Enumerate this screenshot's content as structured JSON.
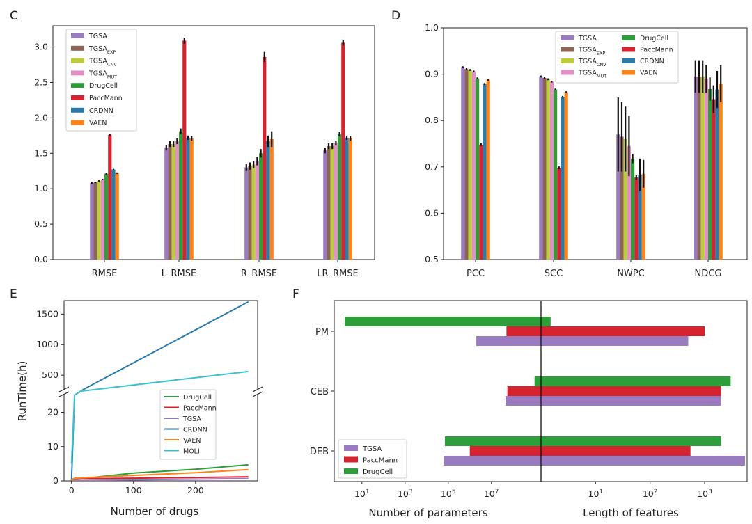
{
  "colors": {
    "TGSA": "#9a7bbf",
    "TGSA_EXP": "#8c6454",
    "TGSA_CNV": "#bccc3c",
    "TGSA_MUT": "#e58fc8",
    "DrugCell": "#2e9e3a",
    "PaccMann": "#d5242f",
    "CRDNN": "#2a7bab",
    "VAEN": "#ff8318",
    "MOLI": "#3cc1cf",
    "errbar": "#111111"
  },
  "model_legend": [
    {
      "key": "TGSA",
      "base": "TGSA",
      "sub": ""
    },
    {
      "key": "TGSA_EXP",
      "base": "TGSA",
      "sub": "EXP"
    },
    {
      "key": "TGSA_CNV",
      "base": "TGSA",
      "sub": "CNV"
    },
    {
      "key": "TGSA_MUT",
      "base": "TGSA",
      "sub": "MUT"
    },
    {
      "key": "DrugCell",
      "base": "DrugCell",
      "sub": ""
    },
    {
      "key": "PaccMann",
      "base": "PaccMann",
      "sub": ""
    },
    {
      "key": "CRDNN",
      "base": "CRDNN",
      "sub": ""
    },
    {
      "key": "VAEN",
      "base": "VAEN",
      "sub": ""
    }
  ],
  "chart_data": [
    {
      "panel": "C",
      "type": "bar",
      "categories": [
        "RMSE",
        "L_RMSE",
        "R_RMSE",
        "LR_RMSE"
      ],
      "ylim": [
        0,
        3.3
      ],
      "yticks": [
        "0.0",
        "0.5",
        "1.0",
        "1.5",
        "2.0",
        "2.5",
        "3.0"
      ],
      "grid": false,
      "legend_position": "top-left",
      "series": [
        {
          "key": "TGSA",
          "values": [
            1.08,
            1.58,
            1.3,
            1.54
          ],
          "errors": [
            0.01,
            0.04,
            0.05,
            0.04
          ]
        },
        {
          "key": "TGSA_EXP",
          "values": [
            1.09,
            1.63,
            1.32,
            1.6
          ],
          "errors": [
            0.01,
            0.04,
            0.05,
            0.04
          ]
        },
        {
          "key": "TGSA_CNV",
          "values": [
            1.11,
            1.63,
            1.34,
            1.6
          ],
          "errors": [
            0.01,
            0.04,
            0.05,
            0.04
          ]
        },
        {
          "key": "TGSA_MUT",
          "values": [
            1.13,
            1.67,
            1.39,
            1.64
          ],
          "errors": [
            0.01,
            0.04,
            0.06,
            0.03
          ]
        },
        {
          "key": "DrugCell",
          "values": [
            1.21,
            1.81,
            1.5,
            1.77
          ],
          "errors": [
            0.01,
            0.04,
            0.06,
            0.03
          ]
        },
        {
          "key": "PaccMann",
          "values": [
            1.76,
            3.09,
            2.86,
            3.06
          ],
          "errors": [
            0.01,
            0.04,
            0.07,
            0.04
          ]
        },
        {
          "key": "CRDNN",
          "values": [
            1.27,
            1.72,
            1.67,
            1.72
          ],
          "errors": [
            0.01,
            0.03,
            0.08,
            0.03
          ]
        },
        {
          "key": "VAEN",
          "values": [
            1.22,
            1.71,
            1.7,
            1.71
          ],
          "errors": [
            0.01,
            0.03,
            0.11,
            0.03
          ]
        }
      ]
    },
    {
      "panel": "D",
      "type": "bar",
      "categories": [
        "PCC",
        "SCC",
        "NWPC",
        "NDCG"
      ],
      "ylim": [
        0.5,
        1.0
      ],
      "yticks": [
        "0.5",
        "0.6",
        "0.7",
        "0.8",
        "0.9",
        "1.0"
      ],
      "grid": false,
      "legend_position": "top-center",
      "series": [
        {
          "key": "TGSA",
          "values": [
            0.915,
            0.895,
            0.77,
            0.895
          ],
          "errors": [
            0.002,
            0.002,
            0.08,
            0.035
          ]
        },
        {
          "key": "TGSA_EXP",
          "values": [
            0.911,
            0.892,
            0.765,
            0.895
          ],
          "errors": [
            0.002,
            0.002,
            0.075,
            0.035
          ]
        },
        {
          "key": "TGSA_CNV",
          "values": [
            0.909,
            0.889,
            0.76,
            0.895
          ],
          "errors": [
            0.002,
            0.002,
            0.07,
            0.035
          ]
        },
        {
          "key": "TGSA_MUT",
          "values": [
            0.906,
            0.884,
            0.745,
            0.89
          ],
          "errors": [
            0.002,
            0.002,
            0.065,
            0.03
          ]
        },
        {
          "key": "DrugCell",
          "values": [
            0.891,
            0.867,
            0.718,
            0.868
          ],
          "errors": [
            0.002,
            0.002,
            0.01,
            0.025
          ]
        },
        {
          "key": "PaccMann",
          "values": [
            0.748,
            0.698,
            0.677,
            0.846
          ],
          "errors": [
            0.003,
            0.003,
            0.005,
            0.03
          ]
        },
        {
          "key": "CRDNN",
          "values": [
            0.879,
            0.851,
            0.683,
            0.867
          ],
          "errors": [
            0.002,
            0.002,
            0.035,
            0.04
          ]
        },
        {
          "key": "VAEN",
          "values": [
            0.888,
            0.861,
            0.685,
            0.88
          ],
          "errors": [
            0.002,
            0.002,
            0.03,
            0.04
          ]
        }
      ]
    },
    {
      "panel": "E",
      "type": "line",
      "xlabel": "Number of drugs",
      "ylabel": "RunTime(h)",
      "xlim": [
        -12,
        300
      ],
      "xticks": [
        "0",
        "100",
        "200"
      ],
      "yticks_lower": [
        "0",
        "10",
        "20"
      ],
      "yticks_upper": [
        "500",
        "1000",
        "1500"
      ],
      "broken_axis": {
        "lower": [
          0,
          26
        ],
        "upper": [
          240,
          1720
        ]
      },
      "legend_position": "lower-right",
      "series": [
        {
          "key": "DrugCell",
          "x": [
            0,
            5,
            100,
            200,
            285
          ],
          "y": [
            0.1,
            0.4,
            2.3,
            3.4,
            4.7
          ]
        },
        {
          "key": "PaccMann",
          "x": [
            0,
            5,
            100,
            200,
            285
          ],
          "y": [
            0.5,
            0.6,
            0.8,
            1.0,
            1.2
          ]
        },
        {
          "key": "TGSA",
          "x": [
            0,
            5,
            100,
            200,
            285
          ],
          "y": [
            0.05,
            0.1,
            0.3,
            0.5,
            0.7
          ]
        },
        {
          "key": "CRDNN",
          "x": [
            0,
            5,
            18,
            285
          ],
          "y": [
            0,
            25,
            260,
            1700
          ]
        },
        {
          "key": "VAEN",
          "x": [
            0,
            5,
            100,
            200,
            285
          ],
          "y": [
            0.2,
            0.8,
            1.6,
            2.4,
            3.3
          ]
        },
        {
          "key": "MOLI",
          "x": [
            0,
            5,
            15,
            285
          ],
          "y": [
            5,
            25,
            220,
            560
          ]
        }
      ]
    },
    {
      "panel": "F",
      "type": "bar",
      "orientation": "horizontal",
      "categories": [
        "PM",
        "CEB",
        "DEB"
      ],
      "xlabel_left": "Number of parameters",
      "xlabel_right": "Length of features",
      "xticks_left": [
        {
          "base": "10",
          "exp": "7"
        },
        {
          "base": "10",
          "exp": "5"
        },
        {
          "base": "10",
          "exp": "3"
        },
        {
          "base": "10",
          "exp": "1"
        }
      ],
      "xticks_right": [
        {
          "base": "10",
          "exp": "1"
        },
        {
          "base": "10",
          "exp": "2"
        },
        {
          "base": "10",
          "exp": "3"
        }
      ],
      "legend_position": "lower-left",
      "series": [
        {
          "key": "TGSA",
          "parameters": [
            2000000.0,
            45000000.0,
            64000.0
          ],
          "feature_length": [
            500,
            2000,
            5500
          ]
        },
        {
          "key": "PaccMann",
          "parameters": [
            50000000.0,
            55000000.0,
            1000000.0
          ],
          "feature_length": [
            1000,
            2000,
            550
          ]
        },
        {
          "key": "DrugCell",
          "parameters": [
            1.6,
            1000000000.0,
            70000.0
          ],
          "feature_length": [
            1.5,
            3000,
            2000
          ]
        }
      ]
    }
  ]
}
